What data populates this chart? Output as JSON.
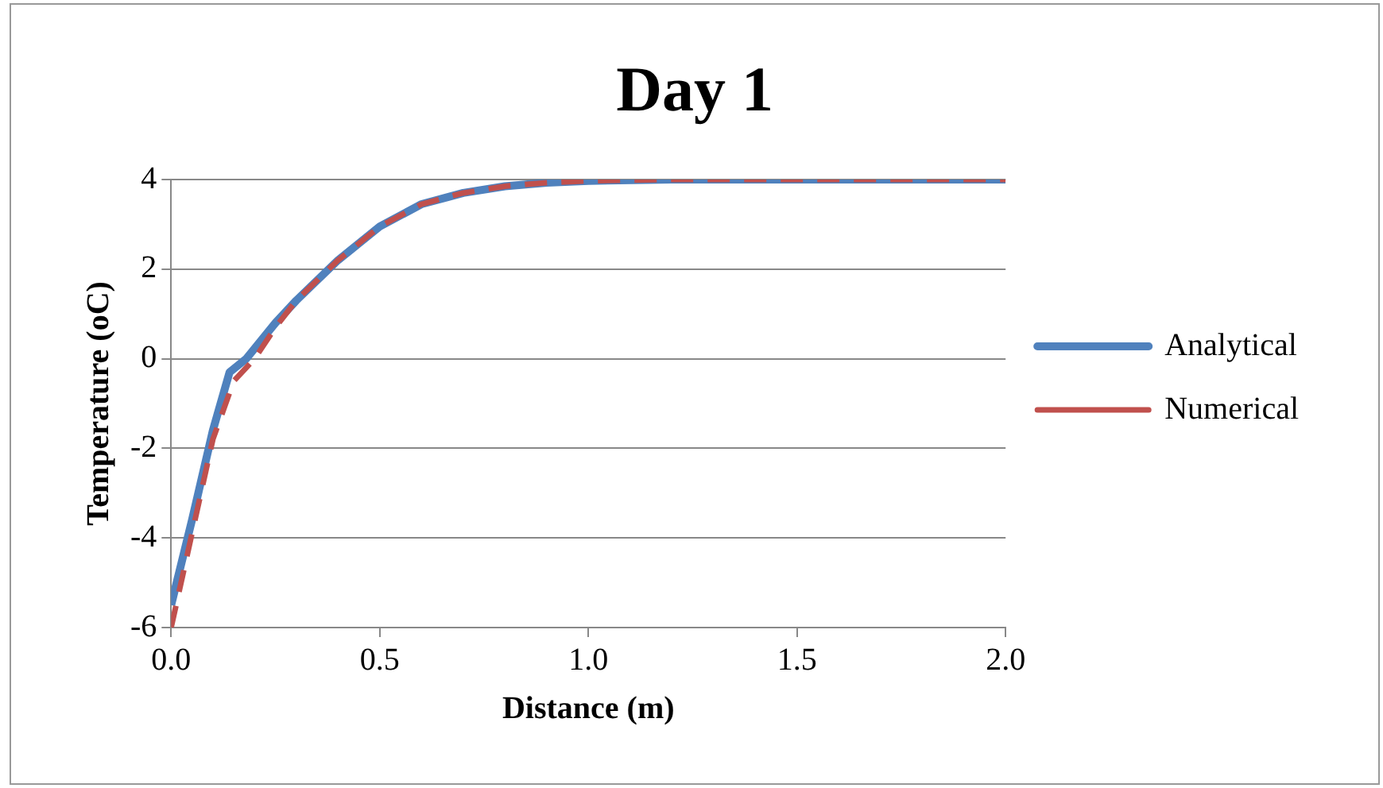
{
  "chart_data": {
    "type": "line",
    "title": "Day 1",
    "xlabel": "Distance (m)",
    "ylabel": "Temperature (oC)",
    "xlim": [
      0,
      2
    ],
    "xticks": [
      {
        "value": 0,
        "label": "0.0"
      },
      {
        "value": 0.5,
        "label": "0.5"
      },
      {
        "value": 1,
        "label": "1.0"
      },
      {
        "value": 1.5,
        "label": "1.5"
      },
      {
        "value": 2,
        "label": "2.0"
      }
    ],
    "ylim": [
      -6,
      4
    ],
    "yticks": [
      -6,
      -4,
      -2,
      0,
      2,
      4
    ],
    "grid": "y",
    "legend": "right",
    "marker": "none",
    "series": [
      {
        "name": "Analytical",
        "color": "#4f81bd",
        "line_style": "solid",
        "x": [
          0,
          0.05,
          0.1,
          0.14,
          0.18,
          0.25,
          0.3,
          0.4,
          0.5,
          0.6,
          0.7,
          0.8,
          0.9,
          1.0,
          1.2,
          1.5,
          2.0
        ],
        "values": [
          -5.5,
          -3.6,
          -1.6,
          -0.3,
          0,
          0.8,
          1.3,
          2.2,
          2.95,
          3.45,
          3.7,
          3.85,
          3.93,
          3.97,
          4,
          4,
          4
        ]
      },
      {
        "name": "Numerical",
        "color": "#c0504d",
        "line_style": "dashed",
        "x": [
          0,
          0.05,
          0.1,
          0.15,
          0.18,
          0.2,
          0.25,
          0.3,
          0.4,
          0.5,
          0.6,
          0.7,
          0.8,
          0.9,
          1.0,
          1.2,
          1.5,
          2.0
        ],
        "values": [
          -6,
          -3.9,
          -1.8,
          -0.5,
          -0.2,
          0,
          0.7,
          1.3,
          2.2,
          2.95,
          3.45,
          3.7,
          3.85,
          3.93,
          3.97,
          4,
          4,
          4
        ]
      }
    ]
  }
}
